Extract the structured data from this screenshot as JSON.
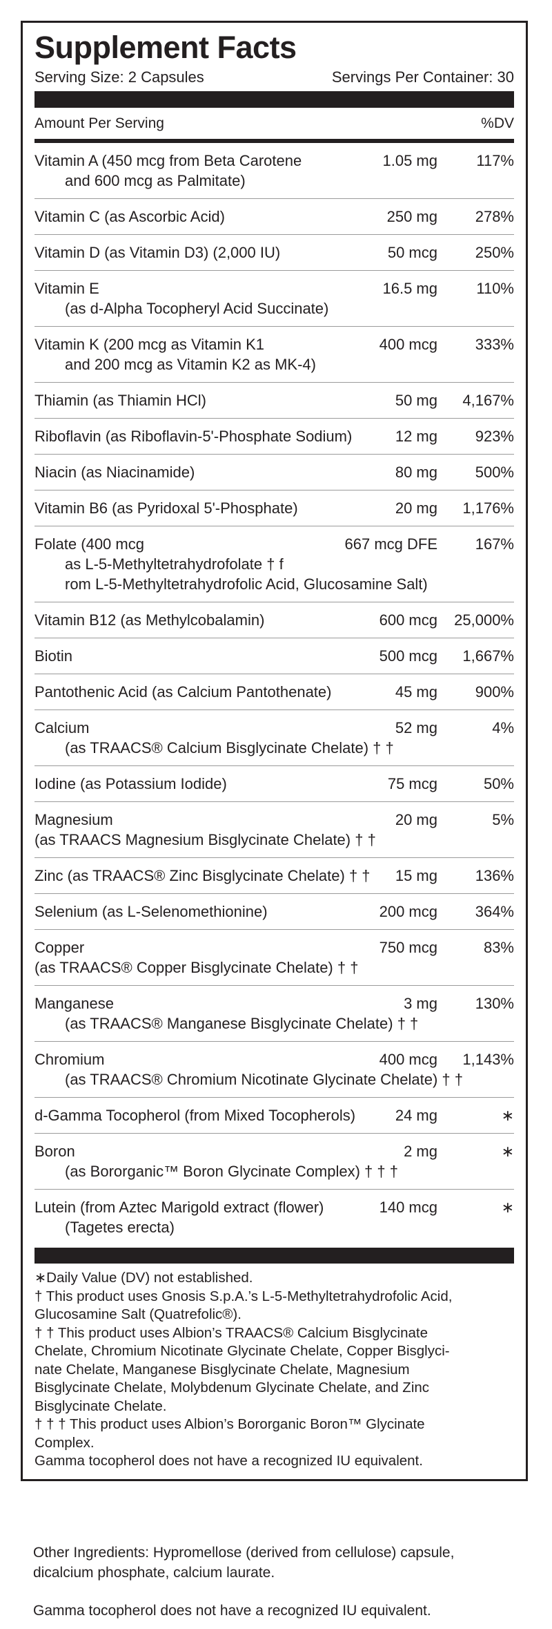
{
  "panel": {
    "title": "Supplement Facts",
    "serving_size": "Serving Size: 2 Capsules",
    "servings_per_container": "Servings Per Container: 30",
    "header": {
      "amount": "Amount Per Serving",
      "dv": "%DV"
    },
    "rows": [
      {
        "lines": [
          "Vitamin A (450 mcg from Beta Carotene",
          "and 600 mcg as Palmitate)"
        ],
        "amount": "1.05 mg",
        "dv": "117%"
      },
      {
        "lines": [
          "Vitamin C (as Ascorbic Acid)"
        ],
        "amount": "250 mg",
        "dv": "278%"
      },
      {
        "lines": [
          "Vitamin D (as Vitamin D3) (2,000 IU)"
        ],
        "amount": "50 mcg",
        "dv": "250%"
      },
      {
        "lines": [
          "Vitamin E",
          "(as d-Alpha Tocopheryl Acid Succinate)"
        ],
        "amount": "16.5 mg",
        "dv": "110%"
      },
      {
        "lines": [
          "Vitamin K (200 mcg as Vitamin K1",
          "and 200 mcg as Vitamin K2 as MK-4)"
        ],
        "amount": "400 mcg",
        "dv": "333%"
      },
      {
        "lines": [
          "Thiamin (as Thiamin HCl)"
        ],
        "amount": "50 mg",
        "dv": "4,167%"
      },
      {
        "lines": [
          "Riboflavin (as Riboflavin-5'-Phosphate Sodium)"
        ],
        "amount": "12 mg",
        "dv": "923%"
      },
      {
        "lines": [
          "Niacin (as Niacinamide)"
        ],
        "amount": "80 mg",
        "dv": "500%"
      },
      {
        "lines": [
          "Vitamin B6 (as Pyridoxal 5'-Phosphate)"
        ],
        "amount": "20 mg",
        "dv": "1,176%"
      },
      {
        "lines": [
          "Folate (400 mcg",
          "as L-5-Methyltetrahydrofolate † f",
          "rom L-5-Methyltetrahydrofolic Acid, Glucosamine Salt)"
        ],
        "amount": "667 mcg DFE",
        "dv": "167%"
      },
      {
        "lines": [
          "Vitamin B12 (as Methylcobalamin)"
        ],
        "amount": "600 mcg",
        "dv": "25,000%"
      },
      {
        "lines": [
          "Biotin"
        ],
        "amount": "500 mcg",
        "dv": "1,667%"
      },
      {
        "lines": [
          "Pantothenic Acid (as Calcium Pantothenate)"
        ],
        "amount": "45 mg",
        "dv": "900%"
      },
      {
        "lines": [
          "Calcium",
          "(as TRAACS® Calcium Bisglycinate Chelate) † †"
        ],
        "amount": "52 mg",
        "dv": "4%"
      },
      {
        "lines": [
          "Iodine (as Potassium Iodide)"
        ],
        "amount": "75 mcg",
        "dv": "50%"
      },
      {
        "lines": [
          "Magnesium",
          "(as TRAACS Magnesium Bisglycinate Chelate) † †"
        ],
        "amount": "20 mg",
        "dv": "5%"
      },
      {
        "lines": [
          "Zinc (as TRAACS® Zinc Bisglycinate Chelate) † †"
        ],
        "amount": "15 mg",
        "dv": "136%"
      },
      {
        "lines": [
          "Selenium (as L-Selenomethionine)"
        ],
        "amount": "200 mcg",
        "dv": "364%"
      },
      {
        "lines": [
          "Copper",
          "(as TRAACS® Copper Bisglycinate Chelate) † †"
        ],
        "amount": "750 mcg",
        "dv": "83%"
      },
      {
        "lines": [
          "Manganese",
          "(as TRAACS® Manganese Bisglycinate Chelate) † †"
        ],
        "amount": "3 mg",
        "dv": "130%"
      },
      {
        "lines": [
          "Chromium",
          "(as TRAACS® Chromium Nicotinate Glycinate Chelate) † †"
        ],
        "amount": "400 mcg",
        "dv": "1,143%"
      },
      {
        "lines": [
          "d-Gamma Tocopherol (from Mixed Tocopherols)"
        ],
        "amount": "24 mg",
        "dv": "∗"
      },
      {
        "lines": [
          "Boron",
          "(as Bororganic™ Boron Glycinate Complex) † † †"
        ],
        "amount": "2 mg",
        "dv": "∗"
      },
      {
        "lines": [
          "Lutein (from Aztec Marigold extract (flower)",
          "(Tagetes erecta)"
        ],
        "amount": "140 mcg",
        "dv": "∗"
      }
    ],
    "footnotes": [
      "∗Daily Value (DV) not established.",
      "† This product uses Gnosis S.p.A.’s L-5-Methyltetrahydrofolic Acid,",
      "Glucosamine Salt (Quatrefolic®).",
      "† † This product uses Albion’s TRAACS® Calcium Bisglycinate",
      "Chelate, Chromium Nicotinate Glycinate Chelate, Copper Bisglyci-",
      "nate Chelate, Manganese Bisglycinate Chelate, Magnesium",
      "Bisglycinate Chelate, Molybdenum Glycinate Chelate, and Zinc",
      "Bisglycinate Chelate.",
      "† † † This product uses Albion’s Bororganic Boron™ Glycinate",
      "Complex.",
      "Gamma tocopherol does not have a recognized IU equivalent."
    ]
  },
  "other_ingredients": [
    "Other Ingredients: Hypromellose (derived from cellulose) capsule,",
    "dicalcium phosphate, calcium laurate."
  ],
  "note": "Gamma tocopherol does not have a recognized IU equivalent."
}
